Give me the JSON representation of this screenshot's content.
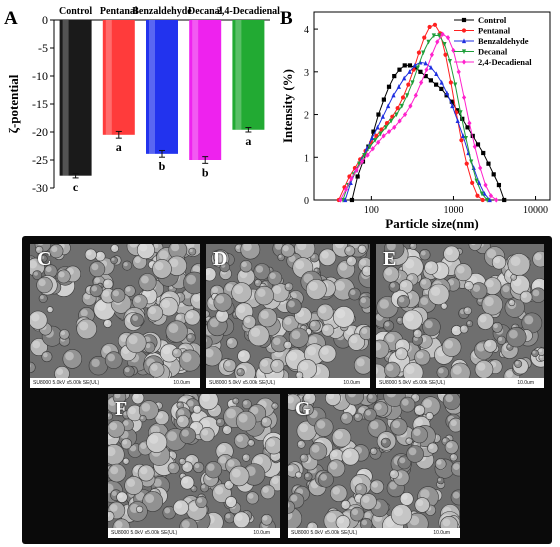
{
  "panel_labels": {
    "a": "A",
    "b": "B"
  },
  "chart_data": [
    {
      "type": "bar",
      "categories": [
        "Control",
        "Pentanal",
        "Benzaldehyde",
        "Decanal",
        "2,4-Decadienal"
      ],
      "values": [
        -27.8,
        -20.5,
        -23.9,
        -25.0,
        -19.6
      ],
      "errors": [
        0.4,
        0.6,
        0.6,
        0.6,
        0.4
      ],
      "significance": [
        "c",
        "a",
        "b",
        "b",
        "a"
      ],
      "colors": [
        "#1a1a1a",
        "#ff3b3b",
        "#2233ee",
        "#ee22ee",
        "#22aa33"
      ],
      "ylabel": "ζ-potential",
      "ylim": [
        -30,
        0
      ],
      "yticks": [
        0,
        -5,
        -10,
        -15,
        -20,
        -25,
        -30
      ]
    },
    {
      "type": "line",
      "xlabel": "Particle size(nm)",
      "ylabel": "Intensity (%)",
      "xscale": "log",
      "xlim": [
        20,
        15000
      ],
      "ylim": [
        0,
        4.4
      ],
      "xticks": [
        10,
        100,
        1000,
        10000
      ],
      "yticks": [
        0,
        1,
        2,
        3,
        4
      ],
      "legend": "top-right",
      "series": [
        {
          "name": "Control",
          "color": "#000000",
          "marker": "square",
          "x": [
            58,
            68,
            79,
            92,
            106,
            122,
            142,
            164,
            190,
            220,
            255,
            295,
            342,
            396,
            459,
            531,
            615,
            712,
            825,
            955,
            1106,
            1281,
            1484,
            1718,
            1990,
            2305,
            2670,
            3091,
            3580,
            4150
          ],
          "y": [
            0,
            0.55,
            0.9,
            1.25,
            1.6,
            2.0,
            2.35,
            2.65,
            2.9,
            3.05,
            3.15,
            3.15,
            3.1,
            3.0,
            2.9,
            2.8,
            2.7,
            2.6,
            2.45,
            2.3,
            2.1,
            1.9,
            1.7,
            1.5,
            1.3,
            1.1,
            0.85,
            0.6,
            0.35,
            0
          ]
        },
        {
          "name": "Pentanal",
          "color": "#ff2020",
          "marker": "circle",
          "x": [
            40,
            47,
            54,
            63,
            73,
            85,
            99,
            115,
            133,
            155,
            180,
            209,
            243,
            282,
            327,
            380,
            441,
            512,
            595,
            690,
            800,
            930,
            1080,
            1250,
            1450,
            1690,
            1960,
            2270
          ],
          "y": [
            0,
            0.3,
            0.55,
            0.75,
            0.95,
            1.15,
            1.35,
            1.5,
            1.65,
            1.8,
            1.95,
            2.15,
            2.4,
            2.7,
            3.05,
            3.45,
            3.8,
            4.05,
            4.1,
            3.9,
            3.4,
            2.75,
            2.05,
            1.4,
            0.85,
            0.4,
            0.1,
            0
          ]
        },
        {
          "name": "Benzaldehyde",
          "color": "#1f2fe0",
          "marker": "triangle",
          "x": [
            48,
            56,
            65,
            76,
            88,
            102,
            119,
            138,
            160,
            186,
            216,
            251,
            292,
            339,
            394,
            458,
            532,
            618,
            718,
            834,
            969,
            1126,
            1308,
            1520,
            1766,
            2051,
            2383,
            2769
          ],
          "y": [
            0,
            0.4,
            0.7,
            0.95,
            1.2,
            1.45,
            1.7,
            1.95,
            2.2,
            2.45,
            2.65,
            2.85,
            3.0,
            3.15,
            3.22,
            3.2,
            3.1,
            2.95,
            2.75,
            2.5,
            2.2,
            1.85,
            1.5,
            1.1,
            0.75,
            0.4,
            0.15,
            0
          ]
        },
        {
          "name": "Decanal",
          "color": "#1e9e3a",
          "marker": "triangle-down",
          "x": [
            45,
            52,
            61,
            71,
            82,
            96,
            111,
            129,
            150,
            174,
            202,
            235,
            273,
            317,
            368,
            428,
            497,
            577,
            670,
            778,
            904,
            1050,
            1219,
            1416,
            1645,
            1910,
            2219,
            2577
          ],
          "y": [
            0,
            0.35,
            0.6,
            0.85,
            1.05,
            1.25,
            1.4,
            1.55,
            1.7,
            1.85,
            2.0,
            2.2,
            2.45,
            2.75,
            3.1,
            3.45,
            3.7,
            3.85,
            3.85,
            3.65,
            3.25,
            2.7,
            2.05,
            1.45,
            0.9,
            0.45,
            0.15,
            0
          ]
        },
        {
          "name": "2,4-Decadienal",
          "color": "#ff22cc",
          "marker": "diamond",
          "x": [
            42,
            49,
            57,
            66,
            77,
            90,
            104,
            121,
            141,
            164,
            190,
            221,
            257,
            299,
            348,
            404,
            470,
            546,
            635,
            738,
            858,
            997,
            1159,
            1347,
            1566,
            1820,
            2116,
            2459,
            2858,
            3322
          ],
          "y": [
            0,
            0.25,
            0.5,
            0.7,
            0.9,
            1.05,
            1.2,
            1.35,
            1.5,
            1.6,
            1.7,
            1.85,
            2.0,
            2.2,
            2.45,
            2.75,
            3.05,
            3.4,
            3.7,
            3.88,
            3.8,
            3.5,
            3.0,
            2.4,
            1.8,
            1.25,
            0.75,
            0.35,
            0.1,
            0
          ]
        }
      ]
    }
  ],
  "sem_panels": [
    {
      "label": "C",
      "info": "SU8000 5.0kV x5.00k SE(UL)",
      "scale": "10.0um"
    },
    {
      "label": "D",
      "info": "SU8000 5.0kV x5.00k SE(UL)",
      "scale": "10.0um"
    },
    {
      "label": "E",
      "info": "SU8000 5.0kV x5.00k SE(UL)",
      "scale": "10.0um"
    },
    {
      "label": "F",
      "info": "SU8000 5.0kV x5.00k SE(UL)",
      "scale": "10.0um"
    },
    {
      "label": "G",
      "info": "SU8000 5.0kV x5.00k SE(UL)",
      "scale": "10.0um"
    }
  ]
}
